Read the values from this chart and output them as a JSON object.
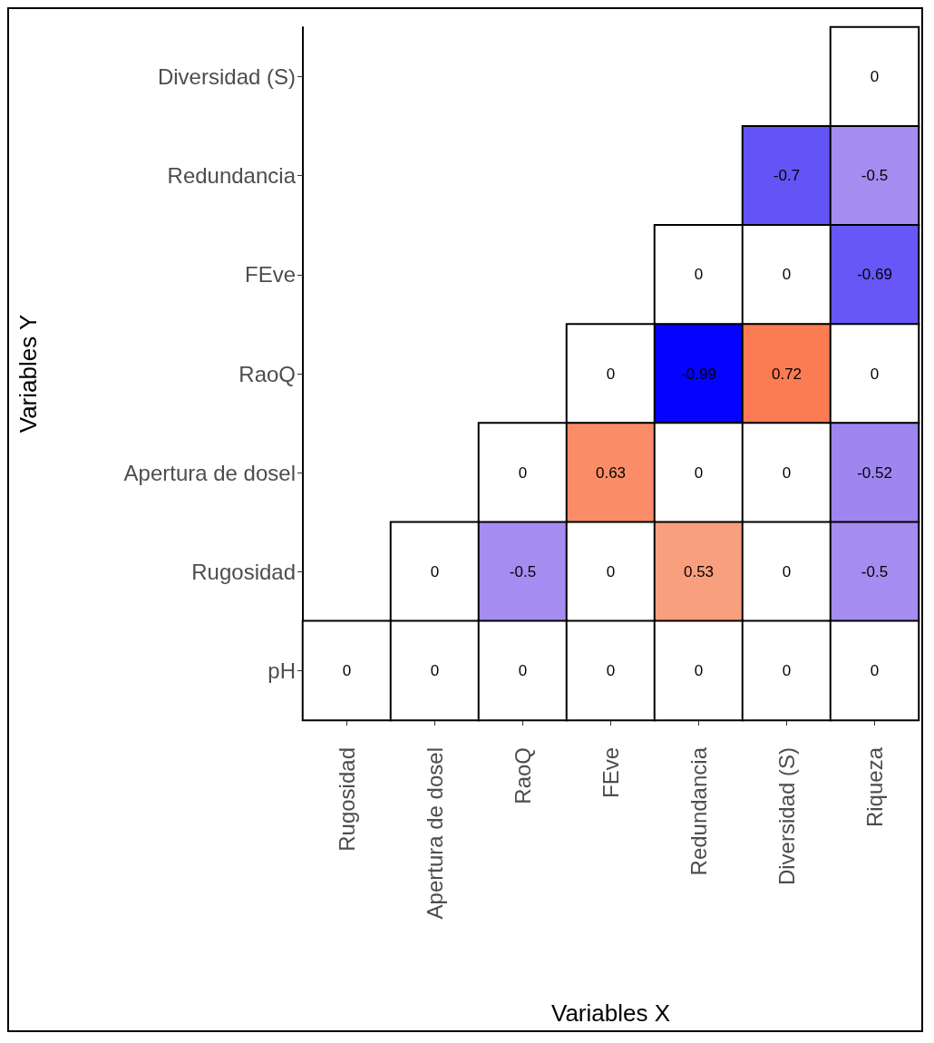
{
  "chart_data": {
    "type": "heatmap",
    "xlabel": "Variables X",
    "ylabel": "Variables Y",
    "categories": [
      "Rugosidad",
      "Apertura de dosel",
      "RaoQ",
      "FEve",
      "Redundancia",
      "Diversidad (S)",
      "Riqueza"
    ],
    "y_categories": [
      "Diversidad (S)",
      "Redundancia",
      "FEve",
      "RaoQ",
      "Apertura de dosel",
      "Rugosidad",
      "pH"
    ],
    "cells": [
      [
        null,
        null,
        null,
        null,
        null,
        null,
        0
      ],
      [
        null,
        null,
        null,
        null,
        null,
        -0.7,
        -0.5
      ],
      [
        null,
        null,
        null,
        null,
        0,
        0,
        -0.69
      ],
      [
        null,
        null,
        null,
        0,
        -0.99,
        0.72,
        0
      ],
      [
        null,
        null,
        0,
        0.63,
        0,
        0,
        -0.52
      ],
      [
        null,
        0,
        -0.5,
        0,
        0.53,
        0,
        -0.5
      ],
      [
        0,
        0,
        0,
        0,
        0,
        0,
        0
      ]
    ],
    "data_labels": true
  }
}
